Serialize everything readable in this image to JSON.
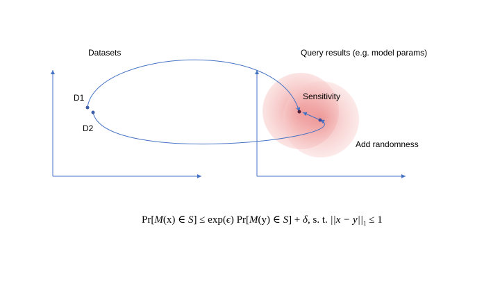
{
  "labels": {
    "datasets": "Datasets",
    "query_results": "Query results (e.g. model params)",
    "d1": "D1",
    "d2": "D2",
    "sensitivity": "Sensitivity",
    "add_randomness": "Add randomness"
  },
  "formula": {
    "pr1": "Pr",
    "m_x": "M",
    "x_arg": "(x) ∈ ",
    "s1": "S",
    "le1": "] ≤ exp(",
    "eps": "ϵ",
    "pr2": ") Pr",
    "m_y": "M",
    "y_arg": "(y) ∈ ",
    "s2": "S",
    "plus": "] + ",
    "delta": "δ",
    "st": ", s. t. ",
    "norm": "||x − y||",
    "sub1": "1",
    "le2": " ≤ 1"
  },
  "colors": {
    "axis": "#4472c4",
    "arrow": "#4472c4",
    "point": "#3b5ea8",
    "point_dark": "#4a1f3a",
    "noise": "#e8807f"
  }
}
